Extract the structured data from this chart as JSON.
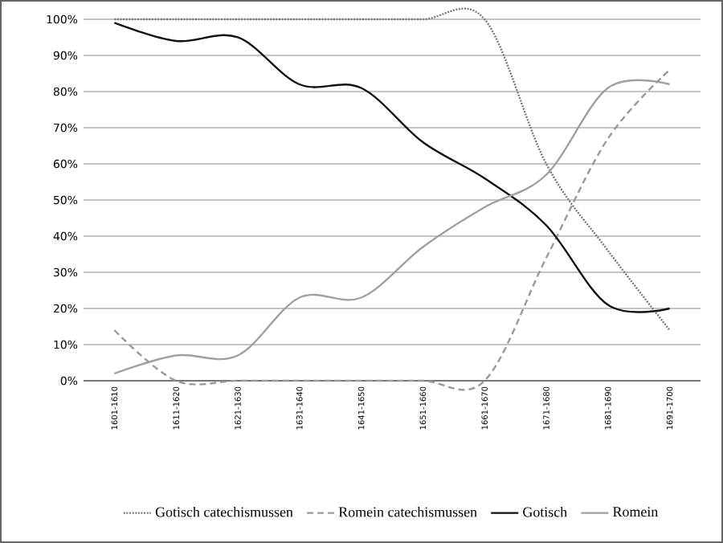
{
  "chart_data": {
    "type": "line",
    "categories": [
      "1601-1610",
      "1611-1620",
      "1621-1630",
      "1631-1640",
      "1641-1650",
      "1651-1660",
      "1661-1670",
      "1671-1680",
      "1681-1690",
      "1691-1700"
    ],
    "series": [
      {
        "name": "Gotisch catechismussen",
        "color": "#777777",
        "line_style": "dotted",
        "values": [
          100,
          100,
          100,
          100,
          100,
          100,
          100,
          60,
          36,
          14
        ]
      },
      {
        "name": "Romein catechismussen",
        "color": "#999999",
        "line_style": "dashed",
        "values": [
          14,
          0,
          0,
          0,
          0,
          0,
          0,
          34,
          67,
          86
        ]
      },
      {
        "name": "Gotisch",
        "color": "#111111",
        "line_style": "solid",
        "values": [
          99,
          94,
          95,
          82,
          81,
          66,
          56,
          43,
          21,
          20
        ]
      },
      {
        "name": "Romein",
        "color": "#a0a0a0",
        "line_style": "solid",
        "values": [
          2,
          7,
          7,
          23,
          23,
          37,
          48,
          57,
          81,
          82
        ]
      }
    ],
    "ylim": [
      0,
      100
    ],
    "yticks": [
      {
        "value": 0,
        "label": "0%"
      },
      {
        "value": 10,
        "label": "10%"
      },
      {
        "value": 20,
        "label": "20%"
      },
      {
        "value": 30,
        "label": "30%"
      },
      {
        "value": 40,
        "label": "40%"
      },
      {
        "value": 50,
        "label": "50%"
      },
      {
        "value": 60,
        "label": "60%"
      },
      {
        "value": 70,
        "label": "70%"
      },
      {
        "value": 80,
        "label": "80%"
      },
      {
        "value": 90,
        "label": "90%"
      },
      {
        "value": 100,
        "label": "100%"
      }
    ],
    "grid": "y",
    "legend": "bottom",
    "marker": "none"
  }
}
